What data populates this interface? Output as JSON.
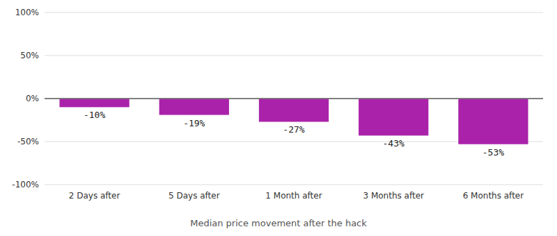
{
  "chart_data": {
    "type": "bar",
    "caption": "Median price movement after the hack",
    "categories": [
      "2 Days after",
      "5 Days after",
      "1 Month after",
      "3 Months after",
      "6 Months after"
    ],
    "values": [
      -10,
      -19,
      -27,
      -43,
      -53
    ],
    "value_labels": [
      "-10%",
      "-19%",
      "-27%",
      "-43%",
      "-53%"
    ],
    "data_labels": true,
    "color": "#aa22aa",
    "ylim": [
      -100,
      100
    ],
    "yticks": [
      {
        "value": -100,
        "label": "-100%"
      },
      {
        "value": -50,
        "label": "-50%"
      },
      {
        "value": 0,
        "label": "0%"
      },
      {
        "value": 50,
        "label": "50%"
      },
      {
        "value": 100,
        "label": "100%"
      }
    ],
    "grid": true
  }
}
